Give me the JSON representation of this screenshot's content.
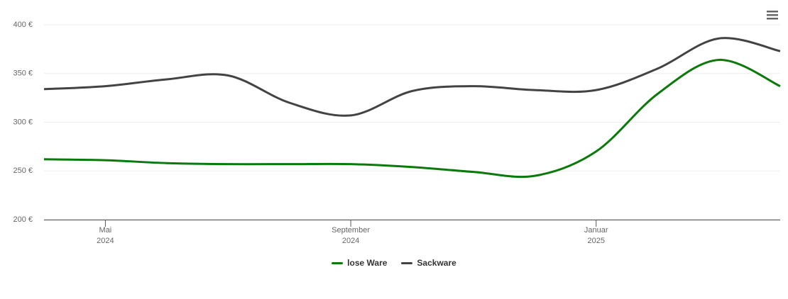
{
  "chart_data": {
    "type": "line",
    "x": [
      "2024-04",
      "2024-05",
      "2024-06",
      "2024-07",
      "2024-08",
      "2024-09",
      "2024-10",
      "2024-11",
      "2024-12",
      "2025-01",
      "2025-02",
      "2025-03",
      "2025-04"
    ],
    "series": [
      {
        "name": "lose Ware",
        "color": "#0a7a0a",
        "values": [
          262,
          261,
          258,
          257,
          257,
          257,
          254,
          249,
          245,
          270,
          329,
          364,
          337
        ]
      },
      {
        "name": "Sackware",
        "color": "#434343",
        "values": [
          334,
          337,
          344,
          348,
          320,
          307,
          332,
          337,
          333,
          333,
          355,
          386,
          373
        ]
      }
    ],
    "xlim": [
      "2024-04",
      "2025-04"
    ],
    "xticks": [
      {
        "value": "2024-05",
        "label": "Mai\n2024"
      },
      {
        "value": "2024-09",
        "label": "September\n2024"
      },
      {
        "value": "2025-01",
        "label": "Januar\n2025"
      }
    ],
    "ylim": [
      200,
      400
    ],
    "yticks": [
      {
        "value": 200,
        "label": "200 €"
      },
      {
        "value": 250,
        "label": "250 €"
      },
      {
        "value": 300,
        "label": "300 €"
      },
      {
        "value": 350,
        "label": "350 €"
      },
      {
        "value": 400,
        "label": "400 €"
      }
    ],
    "grid": true,
    "legend": "bottom"
  }
}
